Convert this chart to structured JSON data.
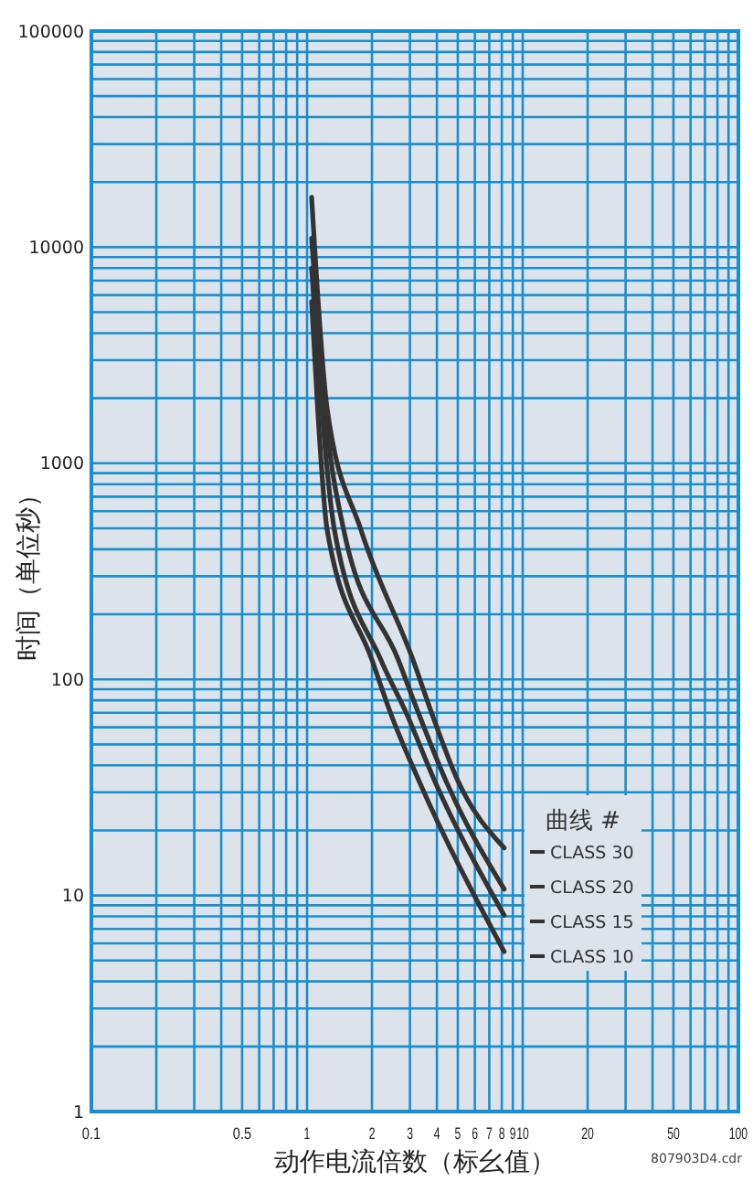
{
  "chart_data": {
    "type": "line",
    "xlabel": "动作电流倍数（标幺值）",
    "ylabel": "时间（单位秒）",
    "legend_title": "曲线 #",
    "legend": "bottom right",
    "log": "xy",
    "grid": true,
    "line_style": "solid",
    "marker": "none",
    "xlim": [
      0.1,
      100
    ],
    "ylim": [
      1,
      100000
    ],
    "xticks": [
      0.1,
      {
        "value": 0.2,
        "label": null
      },
      {
        "value": 0.3,
        "label": null
      },
      {
        "value": 0.4,
        "label": null
      },
      0.5,
      {
        "value": 0.6,
        "label": null
      },
      {
        "value": 0.7,
        "label": null
      },
      {
        "value": 0.8,
        "label": null
      },
      {
        "value": 0.9,
        "label": null
      },
      1,
      2,
      3,
      4,
      5,
      6,
      7,
      8,
      9,
      10,
      20,
      {
        "value": 30,
        "label": null
      },
      {
        "value": 40,
        "label": null
      },
      50,
      {
        "value": 60,
        "label": null
      },
      {
        "value": 70,
        "label": null
      },
      {
        "value": 80,
        "label": null
      },
      {
        "value": 90,
        "label": null
      },
      100
    ],
    "yticks": [
      1,
      {
        "value": 2,
        "label": null
      },
      {
        "value": 3,
        "label": null
      },
      {
        "value": 4,
        "label": null
      },
      {
        "value": 5,
        "label": null
      },
      {
        "value": 6,
        "label": null
      },
      {
        "value": 7,
        "label": null
      },
      {
        "value": 8,
        "label": null
      },
      {
        "value": 9,
        "label": null
      },
      10,
      {
        "value": 20,
        "label": null
      },
      {
        "value": 30,
        "label": null
      },
      {
        "value": 40,
        "label": null
      },
      {
        "value": 50,
        "label": null
      },
      {
        "value": 60,
        "label": null
      },
      {
        "value": 70,
        "label": null
      },
      {
        "value": 80,
        "label": null
      },
      {
        "value": 90,
        "label": null
      },
      100,
      {
        "value": 200,
        "label": null
      },
      {
        "value": 300,
        "label": null
      },
      {
        "value": 400,
        "label": null
      },
      {
        "value": 500,
        "label": null
      },
      {
        "value": 600,
        "label": null
      },
      {
        "value": 700,
        "label": null
      },
      {
        "value": 800,
        "label": null
      },
      {
        "value": 900,
        "label": null
      },
      1000,
      {
        "value": 2000,
        "label": null
      },
      {
        "value": 3000,
        "label": null
      },
      {
        "value": 4000,
        "label": null
      },
      {
        "value": 5000,
        "label": null
      },
      {
        "value": 6000,
        "label": null
      },
      {
        "value": 7000,
        "label": null
      },
      {
        "value": 8000,
        "label": null
      },
      {
        "value": 9000,
        "label": null
      },
      10000,
      {
        "value": 20000,
        "label": null
      },
      {
        "value": 30000,
        "label": null
      },
      {
        "value": 40000,
        "label": null
      },
      {
        "value": 50000,
        "label": null
      },
      {
        "value": 60000,
        "label": null
      },
      {
        "value": 70000,
        "label": null
      },
      {
        "value": 80000,
        "label": null
      },
      {
        "value": 90000,
        "label": null
      },
      100000
    ],
    "series": [
      {
        "name": "CLASS 30",
        "color": "#333333",
        "x": [
          1.05,
          1.24,
          1.78,
          3.1,
          3.8,
          5.0,
          8.2
        ],
        "values": [
          17000,
          1780,
          490,
          123,
          69,
          34,
          16.6
        ]
      },
      {
        "name": "CLASS 20",
        "color": "#333333",
        "x": [
          1.05,
          1.21,
          1.48,
          2.65,
          3.3,
          4.4,
          8.2
        ],
        "values": [
          11000,
          1780,
          490,
          123,
          69,
          34,
          10.7
        ]
      },
      {
        "name": "CLASS 15",
        "color": "#333333",
        "x": [
          1.05,
          1.17,
          1.34,
          2.2,
          2.9,
          3.9,
          8.2
        ],
        "values": [
          8000,
          1780,
          490,
          123,
          69,
          34,
          8.1
        ]
      },
      {
        "name": "CLASS 10",
        "color": "#333333",
        "x": [
          1.05,
          1.12,
          1.24,
          2.0,
          2.45,
          3.3,
          8.2
        ],
        "values": [
          5600,
          1780,
          490,
          123,
          69,
          34,
          5.5
        ]
      }
    ],
    "annotations": [
      "807903D4.cdr"
    ]
  }
}
